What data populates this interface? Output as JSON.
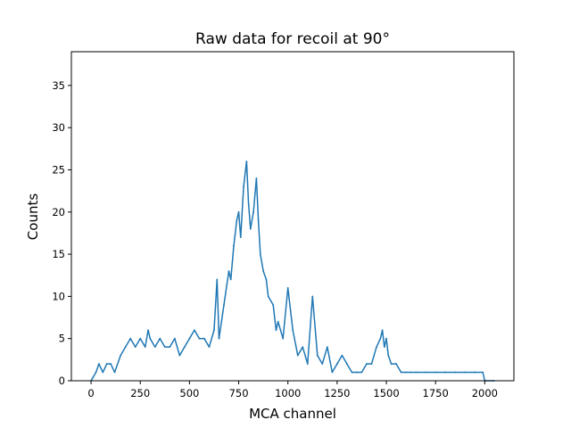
{
  "chart_data": {
    "type": "line",
    "title": "Raw data for recoil at 90°",
    "xlabel": "MCA channel",
    "ylabel": "Counts",
    "xlim": [
      -100,
      2148
    ],
    "ylim": [
      0,
      39
    ],
    "xticks": [
      0,
      250,
      500,
      750,
      1000,
      1250,
      1500,
      1750,
      2000
    ],
    "yticks": [
      0,
      5,
      10,
      15,
      20,
      25,
      30,
      35
    ],
    "grid": false,
    "line_color": "#1f77b4",
    "description_of_data": "Raw MCA spectrum, one count value per channel 0–2047; values below are the visible envelope (approximate local peak counts).",
    "series": [
      {
        "x": [
          0,
          25,
          40,
          60,
          80,
          100,
          120,
          150,
          175,
          200,
          225,
          250,
          275,
          290,
          300,
          325,
          350,
          375,
          400,
          425,
          450,
          475,
          500,
          525,
          550,
          575,
          600,
          625,
          640,
          650,
          675,
          700,
          710,
          725,
          740,
          750,
          760,
          775,
          790,
          800,
          810,
          825,
          840,
          850,
          860,
          875,
          890,
          900,
          925,
          940,
          950,
          975,
          1000,
          1025,
          1050,
          1075,
          1100,
          1125,
          1150,
          1175,
          1200,
          1225,
          1250,
          1275,
          1300,
          1325,
          1350,
          1375,
          1400,
          1425,
          1450,
          1470,
          1480,
          1490,
          1500,
          1510,
          1525,
          1550,
          1575,
          1600,
          1625,
          1650,
          1700,
          1750,
          1800,
          1850,
          1900,
          1950,
          1990,
          2000,
          2047
        ],
        "values": [
          0,
          1,
          2,
          1,
          2,
          2,
          1,
          3,
          4,
          5,
          4,
          5,
          4,
          6,
          5,
          4,
          5,
          4,
          4,
          5,
          3,
          4,
          5,
          6,
          5,
          5,
          4,
          6,
          12,
          5,
          9,
          13,
          12,
          16,
          19,
          20,
          17,
          23,
          26,
          21,
          18,
          20,
          24,
          19,
          15,
          13,
          12,
          10,
          9,
          6,
          7,
          5,
          11,
          6,
          3,
          4,
          2,
          10,
          3,
          2,
          4,
          1,
          2,
          3,
          2,
          1,
          1,
          1,
          2,
          2,
          4,
          5,
          6,
          4,
          5,
          3,
          2,
          2,
          1,
          1,
          1,
          1,
          1,
          1,
          1,
          1,
          1,
          1,
          1,
          0,
          0
        ]
      }
    ]
  }
}
